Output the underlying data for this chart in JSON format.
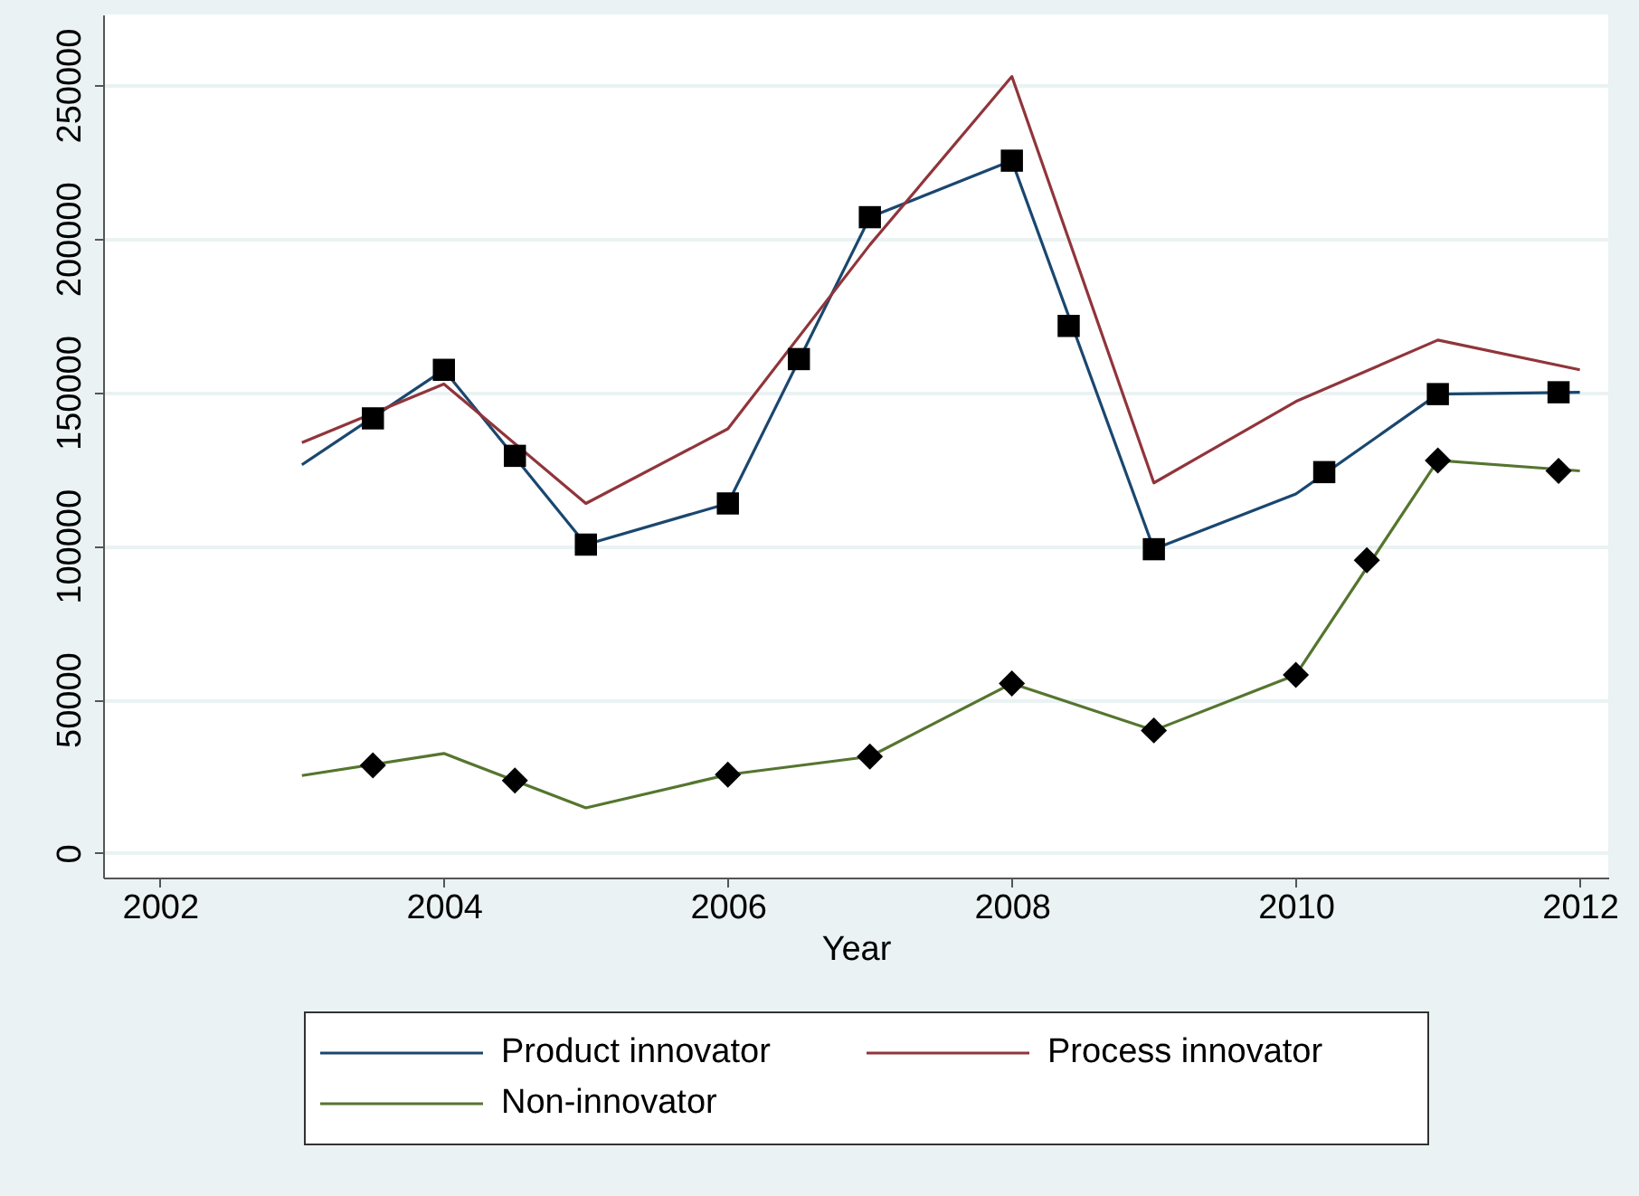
{
  "chart_data": {
    "type": "line",
    "xlabel": "Year",
    "xlim": [
      2001.6,
      2012.2
    ],
    "xticks": [
      2002,
      2004,
      2006,
      2008,
      2010,
      2012
    ],
    "ylim": [
      -8000,
      273000
    ],
    "yticks": [
      0,
      50000,
      100000,
      150000,
      200000,
      250000
    ],
    "grid": "y",
    "legend": "bottom",
    "line_style": "solid",
    "series": [
      {
        "name": "Product innovator",
        "color": "#1a476f",
        "x": [
          2003,
          2004,
          2005,
          2006,
          2007,
          2008,
          2009,
          2010,
          2011,
          2012
        ],
        "values": [
          126400,
          157300,
          100400,
          113800,
          207000,
          225400,
          98900,
          116900,
          149400,
          150000
        ]
      },
      {
        "name": "Process innovator",
        "color": "#90353b",
        "x": [
          2003,
          2004,
          2005,
          2006,
          2007,
          2008,
          2009,
          2010,
          2011,
          2012
        ],
        "values": [
          133600,
          152700,
          113800,
          138100,
          198000,
          252800,
          120500,
          147000,
          167000,
          157300
        ]
      },
      {
        "name": "Non-innovator",
        "color": "#55752f",
        "x": [
          2003,
          2004,
          2005,
          2006,
          2007,
          2008,
          2009,
          2010,
          2011,
          2012
        ],
        "values": [
          25200,
          32400,
          14700,
          25500,
          31400,
          55200,
          39900,
          58000,
          127800,
          124400
        ]
      },
      {
        "color": "#000000",
        "type": "scatter",
        "marker": "square",
        "x": [
          2003.5,
          2004,
          2004.5,
          2005,
          2006,
          2006.5,
          2007,
          2008,
          2008.4,
          2009,
          2010.2,
          2011,
          2011.85
        ],
        "values": [
          141500,
          157300,
          129300,
          100400,
          113800,
          160800,
          207000,
          225400,
          171600,
          98900,
          124000,
          149400,
          150000
        ]
      },
      {
        "color": "#000000",
        "type": "scatter",
        "marker": "diamond",
        "x": [
          2003.5,
          2004.5,
          2006,
          2007,
          2008,
          2009,
          2010,
          2010.5,
          2011,
          2011.85
        ],
        "values": [
          28500,
          23600,
          25500,
          31400,
          55200,
          39900,
          58000,
          95300,
          127800,
          124400
        ]
      }
    ]
  }
}
